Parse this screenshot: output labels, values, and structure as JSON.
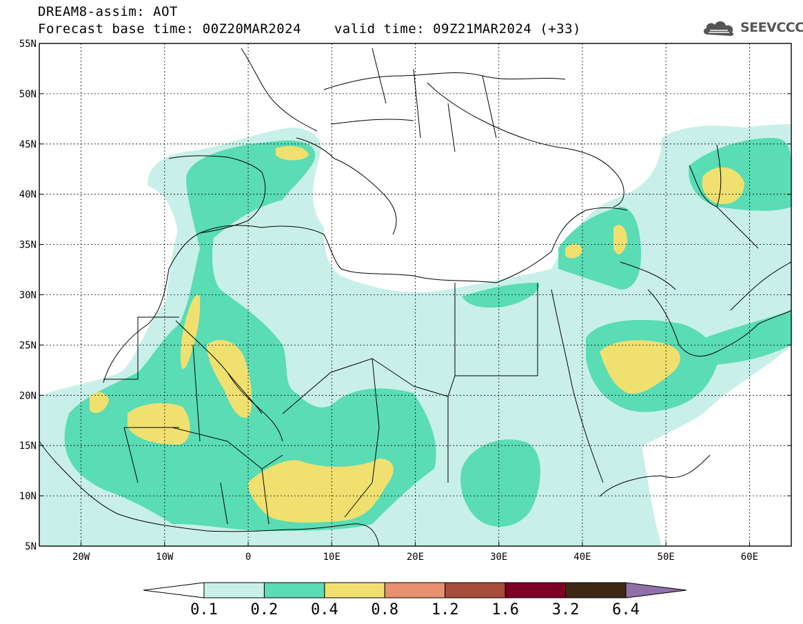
{
  "header": {
    "title": "DREAM8-assim: AOT",
    "base_time_label": "Forecast base time: 00Z20MAR2024",
    "valid_time_label": "valid time: 09Z21MAR2024 (+33)"
  },
  "logo": {
    "text": "SEEVCCC",
    "icon": "cloud-logo-icon"
  },
  "map": {
    "lon_range": [
      -25,
      65
    ],
    "lat_range": [
      5,
      55
    ],
    "lat_ticks": [
      {
        "value": 55,
        "label": "55N"
      },
      {
        "value": 50,
        "label": "50N"
      },
      {
        "value": 45,
        "label": "45N"
      },
      {
        "value": 40,
        "label": "40N"
      },
      {
        "value": 35,
        "label": "35N"
      },
      {
        "value": 30,
        "label": "30N"
      },
      {
        "value": 25,
        "label": "25N"
      },
      {
        "value": 20,
        "label": "20N"
      },
      {
        "value": 15,
        "label": "15N"
      },
      {
        "value": 10,
        "label": "10N"
      },
      {
        "value": 5,
        "label": "5N"
      }
    ],
    "lon_ticks": [
      {
        "value": -20,
        "label": "20W"
      },
      {
        "value": -10,
        "label": "10W"
      },
      {
        "value": 0,
        "label": "0"
      },
      {
        "value": 10,
        "label": "10E"
      },
      {
        "value": 20,
        "label": "20E"
      },
      {
        "value": 30,
        "label": "30E"
      },
      {
        "value": 40,
        "label": "40E"
      },
      {
        "value": 50,
        "label": "50E"
      },
      {
        "value": 60,
        "label": "60E"
      }
    ],
    "gridlines": true
  },
  "colorbar": {
    "labels": [
      "0.1",
      "0.2",
      "0.4",
      "0.8",
      "1.2",
      "1.6",
      "3.2",
      "6.4"
    ],
    "colors": [
      "#ffffff",
      "#c8f0e8",
      "#5adcb4",
      "#f0e070",
      "#e89070",
      "#a84c3c",
      "#7c0024",
      "#3c2814",
      "#9070a8"
    ]
  }
}
